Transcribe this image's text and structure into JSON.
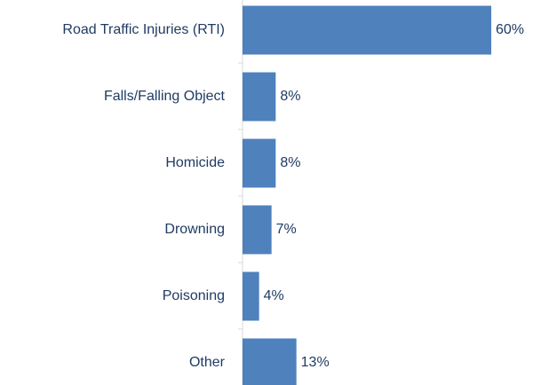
{
  "chart_data": {
    "type": "bar",
    "orientation": "horizontal",
    "categories": [
      "Road Traffic Injuries (RTI)",
      "Falls/Falling Object",
      "Homicide",
      "Drowning",
      "Poisoning",
      "Other"
    ],
    "values": [
      60,
      8,
      8,
      7,
      4,
      13
    ],
    "value_labels": [
      "60%",
      "8%",
      "8%",
      "7%",
      "4%",
      "13%"
    ],
    "color": "#4f81bd"
  }
}
